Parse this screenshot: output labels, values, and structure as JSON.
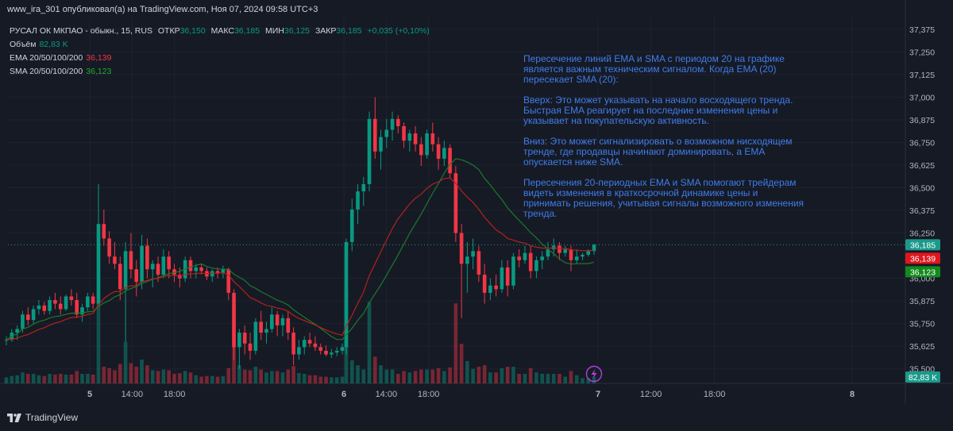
{
  "header": {
    "publish_line": "www_ira_301 опубликовал(а) на TradingView.com, Ноя 07, 2024 09:58 UTC+3"
  },
  "legend": {
    "symbol": "РУСАЛ ОК МКПАО - обыкн., 15, RUS",
    "open_label": "ОТКР",
    "open_value": "36,150",
    "high_label": "МАКС",
    "high_value": "36,185",
    "low_label": "МИН",
    "low_value": "36,125",
    "close_label": "ЗАКР",
    "close_value": "36,185",
    "change": "+0,035 (+0,10%)",
    "volume_label": "Объём",
    "volume_value": "82,83 K",
    "ema_label": "EMA 20/50/100/200",
    "ema_value": "36,139",
    "sma_label": "SMA 20/50/100/200",
    "sma_value": "36,123"
  },
  "annotation": {
    "paragraphs": [
      "Пересечение линий EMA и SMA с периодом 20 на графике\nявляется важным техническим сигналом. Когда EMA (20)\nпересекает SMA (20):",
      "Вверх: Это может указывать на начало восходящего тренда.\nБыстрая EMA реагирует на последние изменения цены и\nуказывает на покупательскую активность.",
      "Вниз: Это может сигнализировать о возможном нисходящем\nтренде, где продавцы начинают доминировать, а EMA\nопускается ниже SMA.",
      "Пересечения 20-периодных EMA и SMA помогают трейдерам\nвидеть изменения в краткосрочной динамике цены и\nпринимать решения, учитывая сигналы возможного изменения\nтренда."
    ]
  },
  "footer": {
    "brand": "TradingView"
  },
  "colors": {
    "background": "#161A25",
    "up": "#089981",
    "down": "#F23645",
    "ema": "#B2221B",
    "sma": "#1B7A2A",
    "annotation": "#3F7DE9",
    "last_price_tag": "#1B9A8A",
    "ema_tag": "#E0161F",
    "sma_tag": "#138A1E"
  },
  "chart_data": {
    "type": "candlestick",
    "title": "РУСАЛ ОК МКПАО - обыкн., 15, RUS",
    "price_axis": {
      "ylim": [
        35.42,
        37.44
      ],
      "ticks": [
        "37,375",
        "37,250",
        "37,125",
        "37,000",
        "36,875",
        "36,750",
        "36,625",
        "36,500",
        "36,375",
        "36,250",
        "36,000",
        "35,875",
        "35,750",
        "35,625",
        "35,500"
      ],
      "tick_values": [
        37.375,
        37.25,
        37.125,
        37.0,
        36.875,
        36.75,
        36.625,
        36.5,
        36.375,
        36.25,
        36.0,
        35.875,
        35.75,
        35.625,
        35.5
      ]
    },
    "time_axis": {
      "labels": [
        "5",
        "14:00",
        "18:00",
        "6",
        "14:00",
        "18:00",
        "7",
        "12:00",
        "18:00",
        "8"
      ],
      "label_positions_hours": [
        0,
        4,
        8,
        24,
        28,
        32,
        48,
        53,
        59,
        72
      ]
    },
    "tags": {
      "last_price": "36,185",
      "ema": "36,139",
      "sma": "36,123",
      "volume": "82,83 K"
    },
    "candles_day5": [
      [
        35.66,
        35.68,
        35.63,
        35.66
      ],
      [
        35.66,
        35.72,
        35.65,
        35.7
      ],
      [
        35.7,
        35.74,
        35.66,
        35.72
      ],
      [
        35.72,
        35.82,
        35.7,
        35.8
      ],
      [
        35.8,
        35.84,
        35.74,
        35.77
      ],
      [
        35.77,
        35.85,
        35.75,
        35.83
      ],
      [
        35.83,
        35.88,
        35.8,
        35.85
      ],
      [
        35.85,
        35.87,
        35.8,
        35.82
      ],
      [
        35.82,
        35.9,
        35.8,
        35.88
      ],
      [
        35.88,
        35.92,
        35.83,
        35.86
      ],
      [
        35.86,
        35.9,
        35.8,
        35.83
      ],
      [
        35.83,
        35.91,
        35.82,
        35.9
      ],
      [
        35.9,
        35.94,
        35.85,
        35.88
      ],
      [
        35.88,
        35.92,
        35.78,
        35.8
      ],
      [
        35.8,
        35.86,
        35.76,
        35.84
      ],
      [
        35.84,
        35.92,
        35.82,
        35.9
      ],
      [
        35.9,
        35.92,
        35.83,
        35.86
      ],
      [
        35.86,
        36.52,
        35.85,
        36.3
      ],
      [
        36.3,
        36.38,
        36.18,
        36.22
      ],
      [
        36.22,
        36.26,
        36.08,
        36.12
      ],
      [
        36.12,
        36.2,
        36.05,
        36.08
      ],
      [
        36.08,
        36.12,
        35.88,
        35.94
      ],
      [
        35.94,
        36.2,
        35.65,
        36.15
      ],
      [
        36.15,
        36.25,
        36.0,
        36.05
      ],
      [
        36.05,
        36.1,
        35.9,
        35.98
      ],
      [
        35.98,
        36.24,
        35.94,
        36.18
      ],
      [
        36.18,
        36.22,
        36.0,
        36.05
      ],
      [
        36.05,
        36.1,
        35.95,
        36.08
      ],
      [
        36.08,
        36.12,
        35.98,
        36.02
      ],
      [
        36.02,
        36.16,
        36.0,
        36.12
      ],
      [
        36.12,
        36.15,
        36.0,
        36.05
      ],
      [
        36.05,
        36.08,
        35.98,
        36.02
      ],
      [
        36.02,
        36.06,
        35.95,
        36.0
      ],
      [
        36.0,
        36.12,
        35.98,
        36.1
      ],
      [
        36.1,
        36.12,
        36.0,
        36.04
      ],
      [
        36.04,
        36.08,
        36.0,
        36.06
      ],
      [
        36.06,
        36.08,
        36.02,
        36.04
      ],
      [
        36.04,
        36.06,
        35.99,
        36.01
      ],
      [
        36.01,
        36.05,
        35.98,
        36.04
      ],
      [
        36.04,
        36.06,
        36.0,
        36.03
      ],
      [
        36.03,
        36.07,
        36.0,
        36.05
      ],
      [
        36.05,
        36.06,
        35.88,
        35.92
      ],
      [
        35.92,
        35.94,
        35.55,
        35.62
      ],
      [
        35.62,
        35.72,
        35.5,
        35.7
      ],
      [
        35.7,
        35.74,
        35.58,
        35.64
      ],
      [
        35.64,
        35.7,
        35.55,
        35.6
      ],
      [
        35.6,
        35.78,
        35.58,
        35.76
      ],
      [
        35.76,
        35.82,
        35.66,
        35.7
      ],
      [
        35.7,
        35.76,
        35.64,
        35.72
      ],
      [
        35.72,
        35.84,
        35.7,
        35.8
      ],
      [
        35.8,
        35.82,
        35.68,
        35.74
      ],
      [
        35.74,
        35.8,
        35.68,
        35.78
      ],
      [
        35.78,
        35.82,
        35.66,
        35.7
      ],
      [
        35.7,
        35.73,
        35.52,
        35.58
      ],
      [
        35.58,
        35.66,
        35.55,
        35.62
      ],
      [
        35.62,
        35.68,
        35.58,
        35.66
      ],
      [
        35.66,
        35.7,
        35.62,
        35.64
      ],
      [
        35.64,
        35.68,
        35.6,
        35.62
      ],
      [
        35.62,
        35.64,
        35.58,
        35.6
      ],
      [
        35.6,
        35.63,
        35.57,
        35.58
      ],
      [
        35.58,
        35.61,
        35.56,
        35.59
      ],
      [
        35.59,
        35.62,
        35.57,
        35.6
      ],
      [
        35.6,
        35.64,
        35.58,
        35.62
      ]
    ],
    "candles_day6": [
      [
        35.62,
        36.22,
        35.58,
        36.2
      ],
      [
        36.2,
        36.44,
        36.15,
        36.38
      ],
      [
        36.38,
        36.52,
        36.3,
        36.48
      ],
      [
        36.48,
        36.56,
        36.4,
        36.52
      ],
      [
        36.52,
        36.92,
        36.48,
        36.88
      ],
      [
        36.88,
        37.0,
        36.66,
        36.7
      ],
      [
        36.7,
        36.82,
        36.6,
        36.78
      ],
      [
        36.78,
        36.88,
        36.72,
        36.82
      ],
      [
        36.82,
        36.92,
        36.76,
        36.88
      ],
      [
        36.88,
        36.9,
        36.8,
        36.84
      ],
      [
        36.84,
        36.86,
        36.72,
        36.76
      ],
      [
        36.76,
        36.82,
        36.7,
        36.8
      ],
      [
        36.8,
        36.84,
        36.7,
        36.74
      ],
      [
        36.74,
        36.78,
        36.62,
        36.68
      ],
      [
        36.68,
        36.82,
        36.66,
        36.8
      ],
      [
        36.8,
        36.86,
        36.7,
        36.74
      ],
      [
        36.74,
        36.78,
        36.6,
        36.66
      ],
      [
        36.66,
        36.76,
        36.62,
        36.72
      ],
      [
        36.72,
        36.74,
        36.55,
        36.58
      ],
      [
        36.58,
        36.62,
        36.2,
        36.25
      ],
      [
        36.25,
        36.3,
        35.78,
        36.08
      ],
      [
        36.08,
        36.2,
        35.92,
        36.12
      ],
      [
        36.12,
        36.22,
        36.05,
        36.15
      ],
      [
        36.15,
        36.18,
        35.98,
        36.02
      ],
      [
        36.02,
        36.08,
        35.86,
        35.92
      ],
      [
        35.92,
        36.0,
        35.88,
        35.96
      ],
      [
        35.96,
        36.02,
        35.9,
        35.94
      ],
      [
        35.94,
        36.1,
        35.92,
        36.06
      ],
      [
        36.06,
        36.1,
        35.9,
        35.96
      ],
      [
        35.96,
        36.14,
        35.94,
        36.12
      ],
      [
        36.12,
        36.16,
        36.06,
        36.1
      ],
      [
        36.1,
        36.18,
        36.08,
        36.14
      ],
      [
        36.14,
        36.18,
        36.0,
        36.04
      ],
      [
        36.04,
        36.12,
        36.0,
        36.1
      ],
      [
        36.1,
        36.15,
        36.05,
        36.12
      ],
      [
        36.12,
        36.2,
        36.1,
        36.16
      ],
      [
        36.16,
        36.22,
        36.12,
        36.18
      ],
      [
        36.18,
        36.2,
        36.1,
        36.14
      ],
      [
        36.14,
        36.18,
        36.12,
        36.16
      ],
      [
        36.16,
        36.18,
        36.04,
        36.1
      ],
      [
        36.1,
        36.16,
        36.08,
        36.12
      ],
      [
        36.12,
        36.14,
        36.1,
        36.13
      ],
      [
        36.13,
        36.16,
        36.12,
        36.15
      ],
      [
        36.15,
        36.19,
        36.13,
        36.185
      ]
    ],
    "volume_relative": "bars at bottom; peaks at ~08:00 on day 6 and ~15:00 on day 6"
  }
}
